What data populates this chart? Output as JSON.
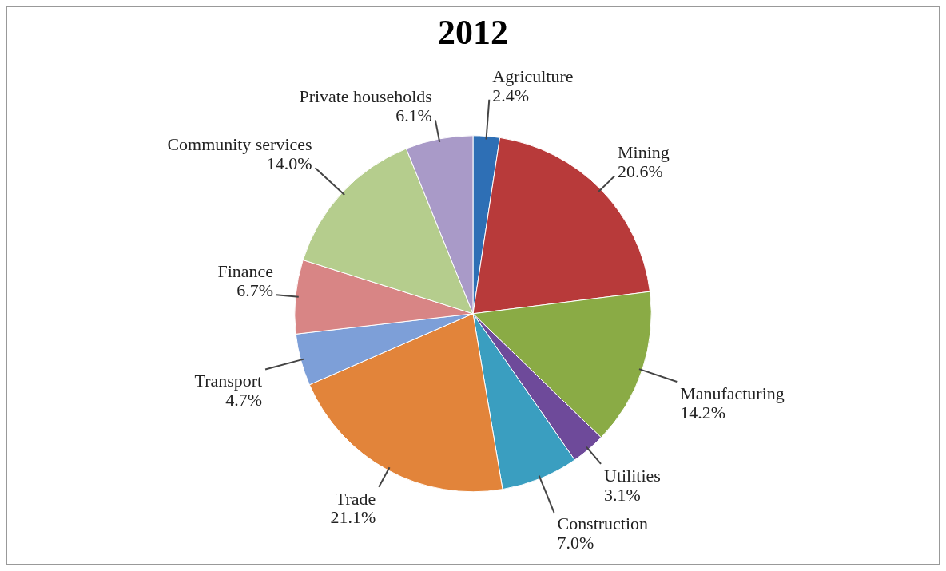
{
  "chart_data": {
    "type": "pie",
    "title": "2012",
    "categories": [
      "Agriculture",
      "Mining",
      "Manufacturing",
      "Utilities",
      "Construction",
      "Trade",
      "Transport",
      "Finance",
      "Community services",
      "Private households"
    ],
    "values": [
      2.4,
      20.6,
      14.2,
      3.1,
      7.0,
      21.1,
      4.7,
      6.7,
      14.0,
      6.1
    ],
    "value_labels": [
      "2.4%",
      "20.6%",
      "14.2%",
      "3.1%",
      "7.0%",
      "21.1%",
      "4.7%",
      "6.7%",
      "14.0%",
      "6.1%"
    ],
    "colors": [
      "#2e6fb5",
      "#b83a3a",
      "#8aab45",
      "#6e4a9a",
      "#3a9ec0",
      "#e2843a",
      "#7d9fd8",
      "#d88585",
      "#b5cd8d",
      "#a99ac8"
    ],
    "legend": false
  }
}
